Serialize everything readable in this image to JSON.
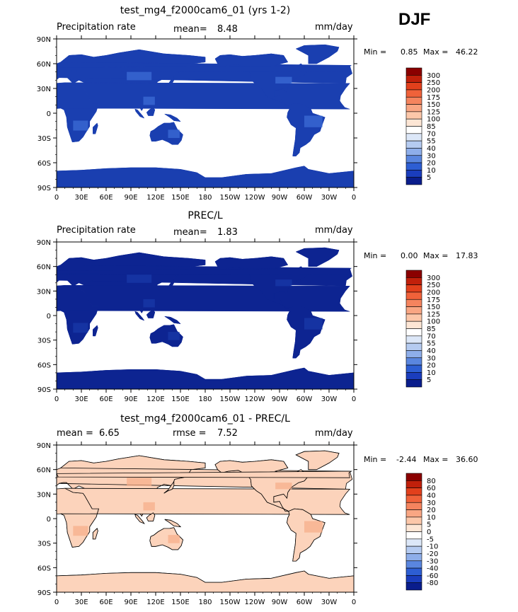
{
  "season": "DJF",
  "colors": {
    "ocean": "#ffffff",
    "map_border": "#000000"
  },
  "chart_data": [
    {
      "type": "heatmap",
      "title": "test_mg4_f2000cam6_01 (yrs 1-2)",
      "left_label": "Precipitation rate",
      "stat1_label": "mean=",
      "stat1_value": "8.48",
      "stat2_label": "",
      "stat2_value": "",
      "units": "mm/day",
      "min_label": "Min =",
      "min_value": "0.85",
      "max_label": "Max =",
      "max_value": "46.22",
      "lat_ticks": [
        "90N",
        "60N",
        "30N",
        "0",
        "30S",
        "60S",
        "90S"
      ],
      "lon_ticks": [
        "0",
        "30E",
        "60E",
        "90E",
        "120E",
        "150E",
        "180",
        "150W",
        "120W",
        "90W",
        "60W",
        "30W",
        "0"
      ],
      "land_color": "#1a3fb0",
      "land_accent": "#3f6fd8",
      "levels": [
        "300",
        "250",
        "200",
        "175",
        "150",
        "125",
        "100",
        "85",
        "70",
        "55",
        "40",
        "30",
        "20",
        "10",
        "5"
      ],
      "palette": [
        "#8b0000",
        "#c1200b",
        "#e2401c",
        "#f0623a",
        "#f5845e",
        "#f9a683",
        "#fcc7a9",
        "#fde6d5",
        "#ffffff",
        "#dce7f8",
        "#b5cbf1",
        "#8eaeea",
        "#5a86df",
        "#2d5ed3",
        "#1a3dbd",
        "#0a1d8c"
      ]
    },
    {
      "type": "heatmap",
      "title": "PREC/L",
      "left_label": "Precipitation rate",
      "stat1_label": "mean=",
      "stat1_value": "1.83",
      "stat2_label": "",
      "stat2_value": "",
      "units": "mm/day",
      "min_label": "Min =",
      "min_value": "0.00",
      "max_label": "Max =",
      "max_value": "17.83",
      "lat_ticks": [
        "90N",
        "60N",
        "30N",
        "0",
        "30S",
        "60S",
        "90S"
      ],
      "lon_ticks": [
        "0",
        "30E",
        "60E",
        "90E",
        "120E",
        "150E",
        "180",
        "150W",
        "120W",
        "90W",
        "60W",
        "30W",
        "0"
      ],
      "land_color": "#0d2491",
      "land_accent": "#1a3aaa",
      "levels": [
        "300",
        "250",
        "200",
        "175",
        "150",
        "125",
        "100",
        "85",
        "70",
        "55",
        "40",
        "30",
        "20",
        "10",
        "5"
      ],
      "palette": [
        "#8b0000",
        "#c1200b",
        "#e2401c",
        "#f0623a",
        "#f5845e",
        "#f9a683",
        "#fcc7a9",
        "#fde6d5",
        "#ffffff",
        "#dce7f8",
        "#b5cbf1",
        "#8eaeea",
        "#5a86df",
        "#2d5ed3",
        "#1a3dbd",
        "#0a1d8c"
      ]
    },
    {
      "type": "heatmap",
      "title": "test_mg4_f2000cam6_01 - PREC/L",
      "left_label": "",
      "stat1_label": "mean =",
      "stat1_value": "6.65",
      "stat2_label": "rmse =",
      "stat2_value": "7.52",
      "units": "mm/day",
      "min_label": "Min =",
      "min_value": "-2.44",
      "max_label": "Max =",
      "max_value": "36.60",
      "lat_ticks": [
        "90N",
        "60N",
        "30N",
        "0",
        "30S",
        "60S",
        "90S"
      ],
      "lon_ticks": [
        "0",
        "30E",
        "60E",
        "90E",
        "120E",
        "150E",
        "180",
        "150W",
        "120W",
        "90W",
        "60W",
        "30W",
        "0"
      ],
      "land_color": "#fcd3bb",
      "land_accent": "#f7ad88",
      "levels": [
        "80",
        "60",
        "40",
        "30",
        "20",
        "10",
        "5",
        "0",
        "-5",
        "-10",
        "-20",
        "-30",
        "-40",
        "-60",
        "-80"
      ],
      "palette": [
        "#8b0000",
        "#c1200b",
        "#e2401c",
        "#f0623a",
        "#f5845e",
        "#f9a683",
        "#fcc7a9",
        "#fde6d5",
        "#ffffff",
        "#dce7f8",
        "#b5cbf1",
        "#8eaeea",
        "#5a86df",
        "#2d5ed3",
        "#1a3dbd",
        "#0a1d8c"
      ]
    }
  ]
}
